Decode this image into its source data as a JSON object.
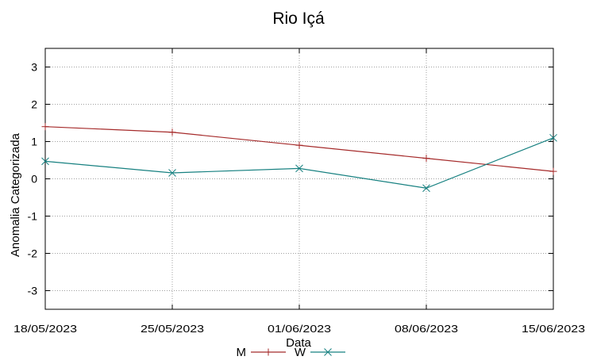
{
  "chart_data": {
    "type": "line",
    "title": "Rio Içá",
    "xlabel": "Data",
    "ylabel": "Anomalia Categorizada",
    "categories": [
      "18/05/2023",
      "25/05/2023",
      "01/06/2023",
      "08/06/2023",
      "15/06/2023"
    ],
    "ylim": [
      -3.5,
      3.5
    ],
    "yticks": [
      "3",
      "2",
      "1",
      "0",
      "-1",
      "-2",
      "-3"
    ],
    "ytick_values": [
      3,
      2,
      1,
      0,
      -1,
      -2,
      -3
    ],
    "grid": true,
    "legend_position": "bottom-center",
    "series": [
      {
        "name": "M",
        "marker": "+",
        "color": "#a52a2a",
        "values": [
          1.4,
          1.25,
          0.9,
          0.55,
          0.2
        ]
      },
      {
        "name": "W",
        "marker": "x",
        "color": "#168080",
        "values": [
          0.47,
          0.16,
          0.28,
          -0.25,
          1.1
        ]
      }
    ]
  }
}
